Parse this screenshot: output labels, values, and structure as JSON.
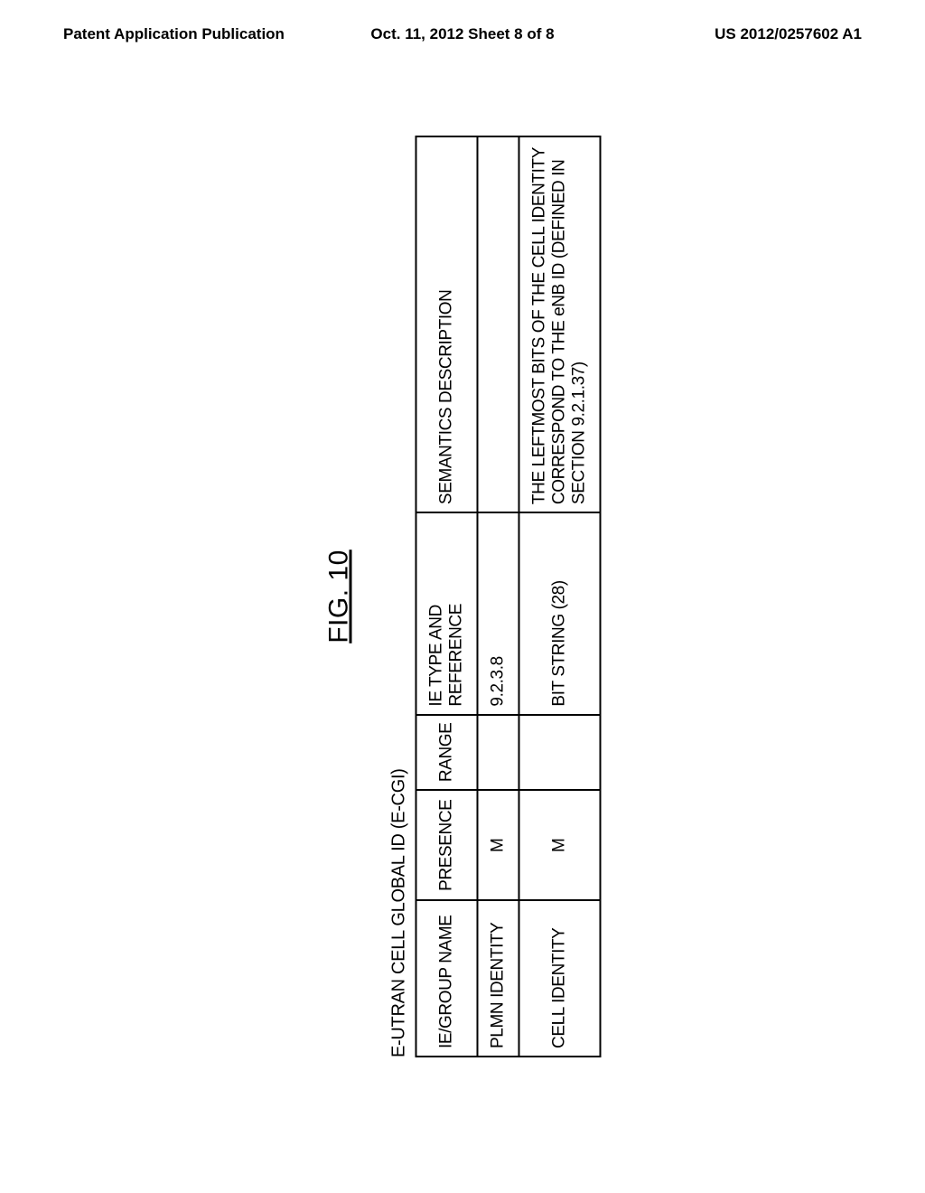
{
  "header": {
    "left": "Patent Application Publication",
    "center": "Oct. 11, 2012  Sheet 8 of 8",
    "right": "US 2012/0257602 A1"
  },
  "figure": {
    "label": "FIG. 10",
    "table_title": "E-UTRAN CELL GLOBAL ID (E-CGI)",
    "columns": {
      "name": "IE/GROUP NAME",
      "presence": "PRESENCE",
      "range": "RANGE",
      "type": "IE TYPE AND REFERENCE",
      "semantics": "SEMANTICS DESCRIPTION"
    },
    "rows": [
      {
        "name": "PLMN IDENTITY",
        "presence": "M",
        "range": "",
        "type": "9.2.3.8",
        "semantics": ""
      },
      {
        "name": "CELL IDENTITY",
        "presence": "M",
        "range": "",
        "type": "BIT STRING (28)",
        "semantics": "THE LEFTMOST BITS OF THE CELL IDENTITY CORRESPOND TO THE eNB ID (DEFINED IN SECTION 9.2.1.37)"
      }
    ]
  }
}
